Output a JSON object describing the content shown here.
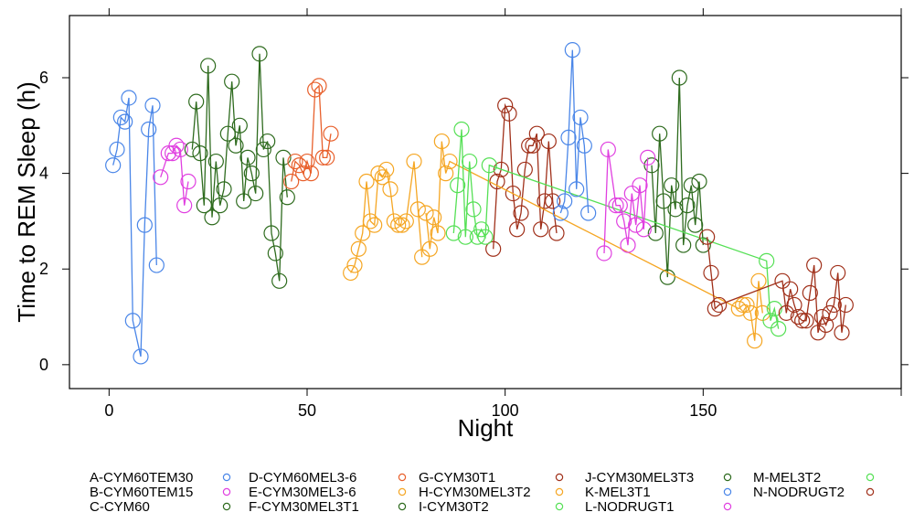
{
  "chart_data": {
    "type": "line",
    "xlabel": "Night",
    "ylabel": "Time to REM Sleep (h)",
    "xlim": [
      -10,
      200
    ],
    "ylim": [
      -0.5,
      7.3
    ],
    "xticks": [
      0,
      50,
      100,
      150
    ],
    "yticks": [
      0,
      2,
      4,
      6
    ],
    "tick_labels_x": [
      "0",
      "50",
      "100",
      "150"
    ],
    "tick_labels_y": [
      "0",
      "2",
      "4",
      "6"
    ],
    "grid": false,
    "legend_position": "bottom",
    "series": [
      {
        "name": "A-CYM60TEM30",
        "color": "#4a86e8",
        "points": [
          [
            1,
            4.17
          ],
          [
            2,
            4.5
          ],
          [
            3,
            5.17
          ],
          [
            4,
            5.08
          ],
          [
            5,
            5.58
          ],
          [
            6,
            0.92
          ],
          [
            8,
            0.17
          ],
          [
            9,
            2.92
          ],
          [
            10,
            4.92
          ],
          [
            11,
            5.42
          ],
          [
            12,
            2.08
          ]
        ]
      },
      {
        "name": "B-CYM60TEM15",
        "color": "#e040e0",
        "points": [
          [
            13,
            3.92
          ],
          [
            15,
            4.42
          ],
          [
            16,
            4.42
          ],
          [
            17,
            4.58
          ],
          [
            18,
            4.5
          ],
          [
            19,
            3.33
          ],
          [
            20,
            3.83
          ]
        ]
      },
      {
        "name": "C-CYM60",
        "color": "#2e6b1e",
        "points": [
          [
            21,
            4.5
          ],
          [
            22,
            5.5
          ],
          [
            23,
            4.42
          ],
          [
            24,
            3.33
          ],
          [
            25,
            6.25
          ],
          [
            26,
            3.08
          ],
          [
            27,
            4.25
          ],
          [
            28,
            3.33
          ],
          [
            29,
            3.67
          ],
          [
            30,
            4.83
          ],
          [
            31,
            5.92
          ],
          [
            32,
            4.58
          ],
          [
            33,
            5.0
          ],
          [
            34,
            3.42
          ],
          [
            35,
            4.33
          ],
          [
            36,
            4.0
          ],
          [
            37,
            3.58
          ],
          [
            38,
            6.5
          ],
          [
            39,
            4.5
          ],
          [
            40,
            4.67
          ],
          [
            41,
            2.75
          ],
          [
            42,
            2.33
          ],
          [
            43,
            1.75
          ],
          [
            44,
            4.33
          ],
          [
            45,
            3.5
          ]
        ]
      },
      {
        "name": "D-CYM60MEL3-6",
        "color": "#e8602c",
        "points": [
          [
            46,
            3.83
          ],
          [
            47,
            4.25
          ],
          [
            48,
            4.17
          ],
          [
            49,
            4.0
          ],
          [
            50,
            4.25
          ],
          [
            51,
            4.0
          ],
          [
            52,
            5.75
          ],
          [
            53,
            5.83
          ],
          [
            54,
            4.33
          ],
          [
            55,
            4.33
          ],
          [
            56,
            4.83
          ]
        ]
      },
      {
        "name": "E-CYM30MEL3-6",
        "color": "#f5a623",
        "points": [
          [
            61,
            1.92
          ],
          [
            62,
            2.08
          ],
          [
            63,
            2.42
          ],
          [
            64,
            2.75
          ],
          [
            65,
            3.83
          ],
          [
            66,
            3.0
          ],
          [
            67,
            2.92
          ],
          [
            68,
            4.0
          ],
          [
            69,
            3.92
          ],
          [
            70,
            4.08
          ],
          [
            71,
            3.67
          ],
          [
            72,
            3.0
          ],
          [
            73,
            2.92
          ],
          [
            74,
            2.92
          ],
          [
            75,
            3.0
          ],
          [
            77,
            4.25
          ],
          [
            78,
            3.25
          ],
          [
            79,
            2.25
          ]
        ]
      },
      {
        "name": "F-CYM30MEL3T1",
        "color": "#2e6b1e",
        "points": [
          [
            137,
            4.17
          ],
          [
            138,
            2.75
          ],
          [
            139,
            4.83
          ],
          [
            140,
            3.42
          ],
          [
            141,
            1.83
          ],
          [
            142,
            3.75
          ],
          [
            143,
            3.25
          ],
          [
            144,
            6.0
          ],
          [
            145,
            2.5
          ],
          [
            146,
            3.33
          ],
          [
            147,
            3.75
          ],
          [
            148,
            2.92
          ],
          [
            149,
            3.83
          ],
          [
            150,
            2.5
          ]
        ]
      },
      {
        "name": "G-CYM30T1",
        "color": "#a0301a",
        "points": [
          [
            97,
            2.42
          ],
          [
            98,
            3.83
          ],
          [
            99,
            4.08
          ],
          [
            100,
            5.42
          ],
          [
            101,
            5.25
          ],
          [
            102,
            3.58
          ],
          [
            103,
            2.83
          ],
          [
            104,
            3.17
          ],
          [
            105,
            4.08
          ],
          [
            106,
            4.58
          ],
          [
            107,
            4.58
          ],
          [
            108,
            4.83
          ],
          [
            109,
            2.83
          ],
          [
            110,
            3.42
          ],
          [
            111,
            4.67
          ],
          [
            112,
            3.42
          ],
          [
            113,
            2.75
          ]
        ]
      },
      {
        "name": "H-CYM30MEL3T2",
        "color": "#f5a623",
        "points": [
          [
            80,
            3.17
          ],
          [
            81,
            2.42
          ],
          [
            82,
            3.08
          ],
          [
            83,
            2.75
          ],
          [
            84,
            4.67
          ],
          [
            85,
            4.0
          ],
          [
            86,
            4.25
          ],
          [
            159,
            1.17
          ],
          [
            160,
            1.25
          ],
          [
            161,
            1.25
          ],
          [
            162,
            1.08
          ],
          [
            163,
            0.5
          ],
          [
            164,
            1.75
          ],
          [
            165,
            1.08
          ]
        ]
      },
      {
        "name": "I-CYM30T2",
        "color": "#55e055",
        "points": [
          [
            87,
            2.75
          ],
          [
            88,
            3.75
          ],
          [
            89,
            4.92
          ],
          [
            90,
            2.67
          ],
          [
            91,
            4.25
          ],
          [
            92,
            3.25
          ],
          [
            93,
            2.67
          ],
          [
            94,
            2.83
          ],
          [
            95,
            2.67
          ],
          [
            96,
            4.17
          ],
          [
            166,
            2.17
          ],
          [
            167,
            0.92
          ],
          [
            168,
            1.17
          ],
          [
            169,
            0.75
          ]
        ]
      },
      {
        "name": "J-CYM30MEL3T3",
        "color": "#2e6b1e",
        "points": []
      },
      {
        "name": "K-MEL3T1",
        "color": "#4a86e8",
        "points": [
          [
            114,
            3.17
          ],
          [
            115,
            3.42
          ],
          [
            116,
            4.75
          ],
          [
            117,
            6.58
          ],
          [
            118,
            3.67
          ],
          [
            119,
            5.17
          ],
          [
            120,
            4.58
          ],
          [
            121,
            3.17
          ]
        ]
      },
      {
        "name": "L-NODRUGT1",
        "color": "#e040e0",
        "points": [
          [
            125,
            2.33
          ],
          [
            126,
            4.5
          ],
          [
            128,
            3.33
          ],
          [
            129,
            3.33
          ],
          [
            130,
            3.0
          ],
          [
            131,
            2.5
          ],
          [
            132,
            3.58
          ],
          [
            133,
            2.92
          ],
          [
            134,
            3.75
          ],
          [
            135,
            2.83
          ],
          [
            136,
            4.33
          ]
        ]
      },
      {
        "name": "M-MEL3T2",
        "color": "#55e055",
        "points": []
      },
      {
        "name": "N-NODRUGT2",
        "color": "#a0301a",
        "points": [
          [
            151,
            2.67
          ],
          [
            152,
            1.92
          ],
          [
            153,
            1.17
          ],
          [
            154,
            1.25
          ],
          [
            170,
            1.75
          ],
          [
            171,
            1.08
          ],
          [
            172,
            1.58
          ],
          [
            173,
            1.25
          ],
          [
            174,
            1.0
          ],
          [
            175,
            0.92
          ],
          [
            176,
            0.92
          ],
          [
            177,
            1.5
          ],
          [
            178,
            2.08
          ],
          [
            179,
            0.67
          ],
          [
            180,
            1.0
          ],
          [
            181,
            0.83
          ],
          [
            182,
            1.08
          ],
          [
            183,
            1.25
          ],
          [
            184,
            1.92
          ],
          [
            185,
            0.67
          ],
          [
            186,
            1.25
          ]
        ]
      }
    ]
  }
}
